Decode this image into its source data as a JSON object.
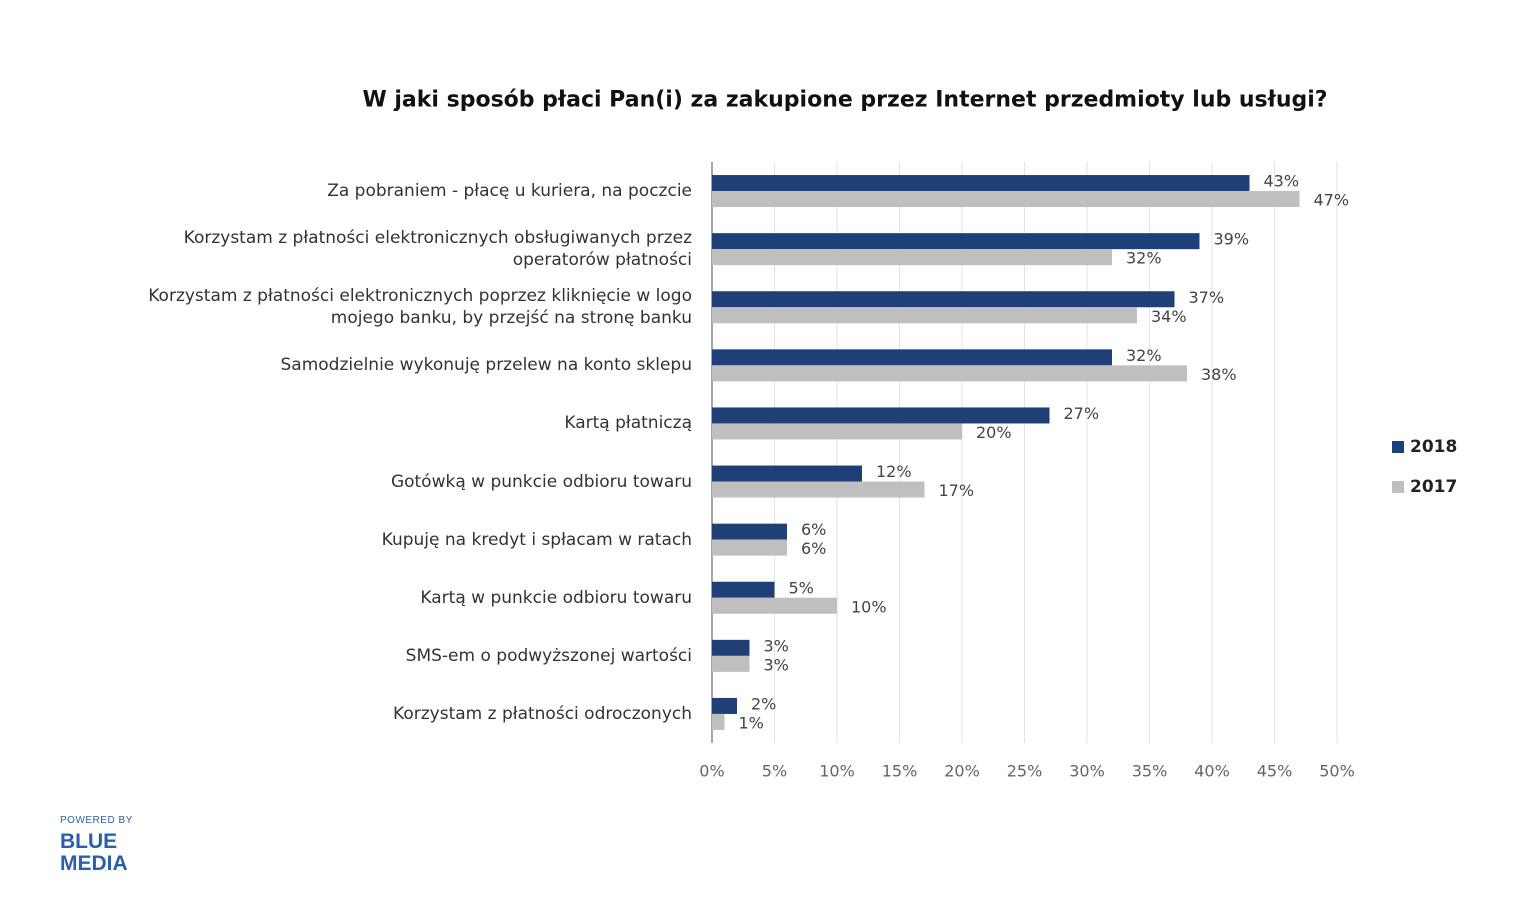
{
  "chart_data": {
    "type": "hbar",
    "title": "W jaki sposób płaci Pan(i) za zakupione przez Internet przedmioty lub usługi?",
    "categories": [
      "Za pobraniem - płacę u kuriera, na poczcie",
      "Korzystam z płatności elektronicznych obsługiwanych przez operatorów płatności",
      "Korzystam z płatności elektronicznych poprzez kliknięcie w logo mojego banku, by przejść na stronę banku",
      "Samodzielnie wykonuję przelew na konto sklepu",
      "Kartą płatniczą",
      "Gotówką w punkcie odbioru towaru",
      "Kupuję na kredyt i spłacam w ratach",
      "Kartą w punkcie odbioru towaru",
      "SMS-em o podwyższonej wartości",
      "Korzystam z płatności odroczonych"
    ],
    "series": [
      {
        "name": "2018",
        "color": "#1f3f77",
        "values": [
          43,
          39,
          37,
          32,
          27,
          12,
          6,
          5,
          3,
          2
        ],
        "value_labels": [
          "43%",
          "39%",
          "37%",
          "32%",
          "27%",
          "12%",
          "6%",
          "5%",
          "3%",
          "2%"
        ]
      },
      {
        "name": "2017",
        "color": "#bfbfbf",
        "values": [
          47,
          32,
          34,
          38,
          20,
          17,
          6,
          10,
          3,
          1
        ],
        "value_labels": [
          "47%",
          "32%",
          "34%",
          "38%",
          "20%",
          "17%",
          "6%",
          "10%",
          "3%",
          "1%"
        ]
      }
    ],
    "xlim": [
      0,
      50
    ],
    "xticks": [
      {
        "value": 0,
        "label": "0%"
      },
      {
        "value": 5,
        "label": "5%"
      },
      {
        "value": 10,
        "label": "10%"
      },
      {
        "value": 15,
        "label": "15%"
      },
      {
        "value": 20,
        "label": "20%"
      },
      {
        "value": 25,
        "label": "25%"
      },
      {
        "value": 30,
        "label": "30%"
      },
      {
        "value": 35,
        "label": "35%"
      },
      {
        "value": 40,
        "label": "40%"
      },
      {
        "value": 45,
        "label": "45%"
      },
      {
        "value": 50,
        "label": "50%"
      }
    ],
    "grid": true,
    "legend": "right"
  },
  "footer": {
    "powered_by": "POWERED BY",
    "logo": [
      "BLUE",
      "MEDIA"
    ]
  }
}
